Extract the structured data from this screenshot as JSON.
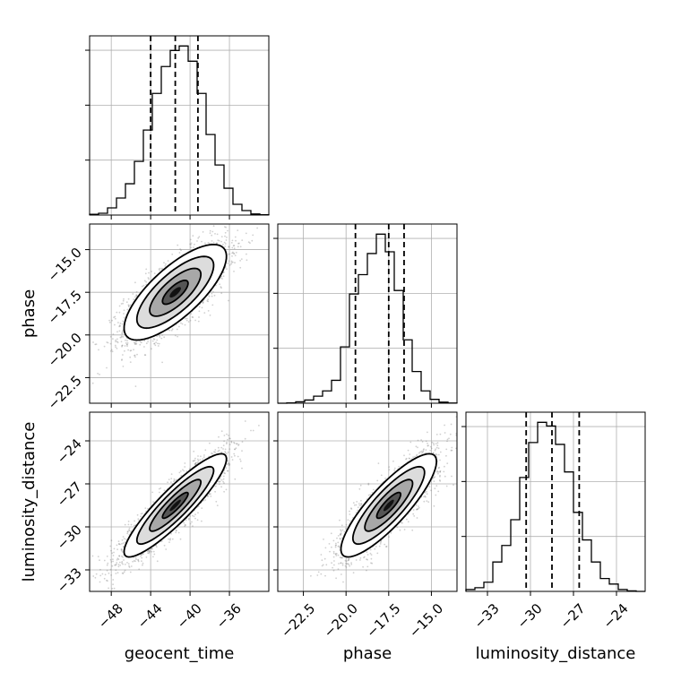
{
  "chart_data": {
    "type": "corner",
    "parameters": [
      "geocent_time",
      "phase",
      "luminosity_distance"
    ],
    "axes": {
      "geocent_time": {
        "label": "geocent_time",
        "range": [
          -50.2,
          -32.0
        ],
        "ticks": [
          -48,
          -44,
          -40,
          -36
        ],
        "tick_labels": [
          "−48",
          "−44",
          "−40",
          "−36"
        ]
      },
      "phase": {
        "label": "phase",
        "range": [
          -24.0,
          -13.5
        ],
        "ticks": [
          -22.5,
          -20.0,
          -17.5,
          -15.0
        ],
        "tick_labels": [
          "−22.5",
          "−20.0",
          "−17.5",
          "−15.0"
        ]
      },
      "luminosity_distance": {
        "label": "luminosity_distance",
        "range": [
          -34.5,
          -22.0
        ],
        "ticks": [
          -33,
          -30,
          -27,
          -24
        ],
        "tick_labels": [
          "−33",
          "−30",
          "−27",
          "−24"
        ]
      }
    },
    "marginals": [
      {
        "param": "geocent_time",
        "bin_edges": [
          -50.2,
          -49.29,
          -48.38,
          -47.47,
          -46.56,
          -45.65,
          -44.74,
          -43.83,
          -42.92,
          -42.01,
          -41.1,
          -40.19,
          -39.28,
          -38.37,
          -37.46,
          -36.55,
          -35.64,
          -34.73,
          -33.82,
          -32.91,
          -32.0
        ],
        "counts": [
          4,
          10,
          40,
          95,
          175,
          300,
          475,
          680,
          830,
          920,
          945,
          860,
          680,
          450,
          280,
          150,
          60,
          25,
          6,
          2
        ],
        "quantiles": [
          -44.0,
          -41.5,
          -39.2
        ]
      },
      {
        "param": "phase",
        "bin_edges": [
          -24.0,
          -23.475,
          -22.95,
          -22.425,
          -21.9,
          -21.375,
          -20.85,
          -20.325,
          -19.8,
          -19.275,
          -18.75,
          -18.225,
          -17.7,
          -17.175,
          -16.65,
          -16.125,
          -15.6,
          -15.075,
          -14.55,
          -14.025,
          -13.5
        ],
        "counts": [
          0,
          2,
          8,
          18,
          40,
          70,
          130,
          320,
          620,
          730,
          850,
          960,
          860,
          640,
          360,
          180,
          70,
          22,
          6,
          1
        ],
        "quantiles": [
          -19.45,
          -17.5,
          -16.6
        ]
      },
      {
        "param": "luminosity_distance",
        "bin_edges": [
          -34.5,
          -33.875,
          -33.25,
          -32.625,
          -32.0,
          -31.375,
          -30.75,
          -30.125,
          -29.5,
          -28.875,
          -28.25,
          -27.625,
          -27.0,
          -26.375,
          -25.75,
          -25.125,
          -24.5,
          -23.875,
          -23.25,
          -22.625,
          -22.0
        ],
        "counts": [
          10,
          20,
          50,
          160,
          250,
          390,
          620,
          810,
          920,
          900,
          800,
          650,
          430,
          280,
          160,
          70,
          40,
          10,
          3,
          0
        ],
        "quantiles": [
          -30.3,
          -28.5,
          -26.6
        ]
      }
    ],
    "joints": [
      {
        "x": "geocent_time",
        "y": "phase",
        "mean": [
          -41.5,
          -17.5
        ],
        "sd": [
          2.6,
          1.4
        ],
        "rho": 0.75,
        "contour_levels_sigma": [
          0.5,
          1.0,
          1.5,
          2.0
        ]
      },
      {
        "x": "geocent_time",
        "y": "luminosity_distance",
        "mean": [
          -41.5,
          -28.5
        ],
        "sd": [
          2.6,
          1.8
        ],
        "rho": 0.9,
        "contour_levels_sigma": [
          0.5,
          1.0,
          1.5,
          2.0
        ]
      },
      {
        "x": "phase",
        "y": "luminosity_distance",
        "mean": [
          -17.5,
          -28.5
        ],
        "sd": [
          1.4,
          1.8
        ],
        "rho": 0.85,
        "contour_levels_sigma": [
          0.5,
          1.0,
          1.5,
          2.0
        ]
      }
    ],
    "grid": true,
    "colors": {
      "line": "#000000",
      "grid": "#b0b0b0",
      "points": "#777777"
    }
  }
}
